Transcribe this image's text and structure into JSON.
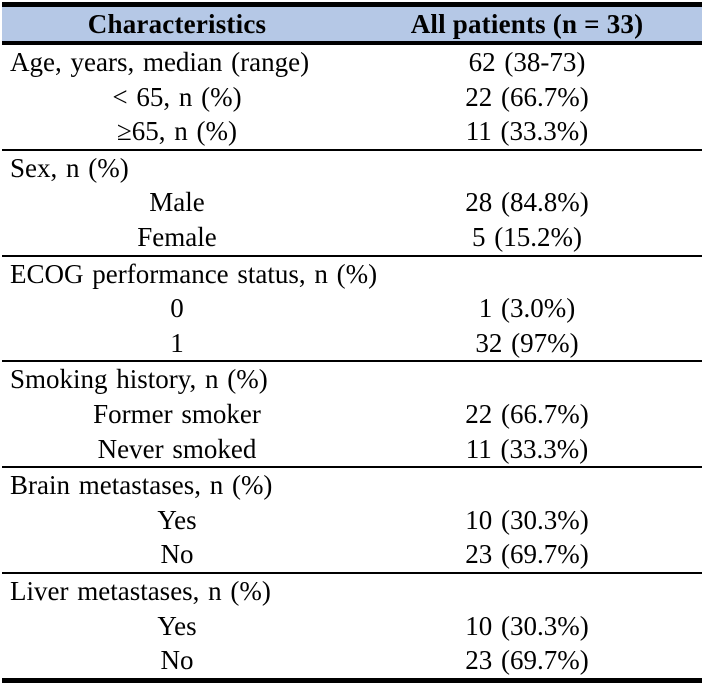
{
  "table": {
    "header": {
      "col1": "Characteristics",
      "col2": "All patients (n = 33)",
      "bg_color": "#b5c8e6"
    },
    "rows": [
      {
        "label": "Age, years, median (range)",
        "value": "62 (38-73)",
        "indent": "none",
        "rule_above": false
      },
      {
        "label": "< 65, n (%)",
        "value": "22 (66.7%)",
        "indent": "sub",
        "rule_above": false
      },
      {
        "label": "≥65, n (%)",
        "value": "11 (33.3%)",
        "indent": "sub",
        "rule_above": false
      },
      {
        "label": "Sex, n (%)",
        "value": "",
        "indent": "none",
        "rule_above": true
      },
      {
        "label": "Male",
        "value": "28 (84.8%)",
        "indent": "sub",
        "rule_above": false
      },
      {
        "label": "Female",
        "value": "5 (15.2%)",
        "indent": "sub",
        "rule_above": false
      },
      {
        "label": "ECOG performance status, n (%)",
        "value": "",
        "indent": "none",
        "rule_above": true
      },
      {
        "label": "0",
        "value": "1 (3.0%)",
        "indent": "sub",
        "rule_above": false
      },
      {
        "label": "1",
        "value": "32 (97%)",
        "indent": "sub",
        "rule_above": false
      },
      {
        "label": "Smoking history, n (%)",
        "value": "",
        "indent": "none",
        "rule_above": true
      },
      {
        "label": "Former smoker",
        "value": "22 (66.7%)",
        "indent": "sub",
        "rule_above": false
      },
      {
        "label": "Never smoked",
        "value": "11 (33.3%)",
        "indent": "sub",
        "rule_above": false
      },
      {
        "label": "Brain metastases, n (%)",
        "value": "",
        "indent": "none",
        "rule_above": true
      },
      {
        "label": "Yes",
        "value": "10 (30.3%)",
        "indent": "sub",
        "rule_above": false
      },
      {
        "label": "No",
        "value": "23 (69.7%)",
        "indent": "sub",
        "rule_above": false
      },
      {
        "label": "Liver metastases, n (%)",
        "value": "",
        "indent": "none",
        "rule_above": true
      },
      {
        "label": "Yes",
        "value": "10 (30.3%)",
        "indent": "sub",
        "rule_above": false
      },
      {
        "label": "No",
        "value": "23 (69.7%)",
        "indent": "sub",
        "rule_above": false
      }
    ]
  }
}
